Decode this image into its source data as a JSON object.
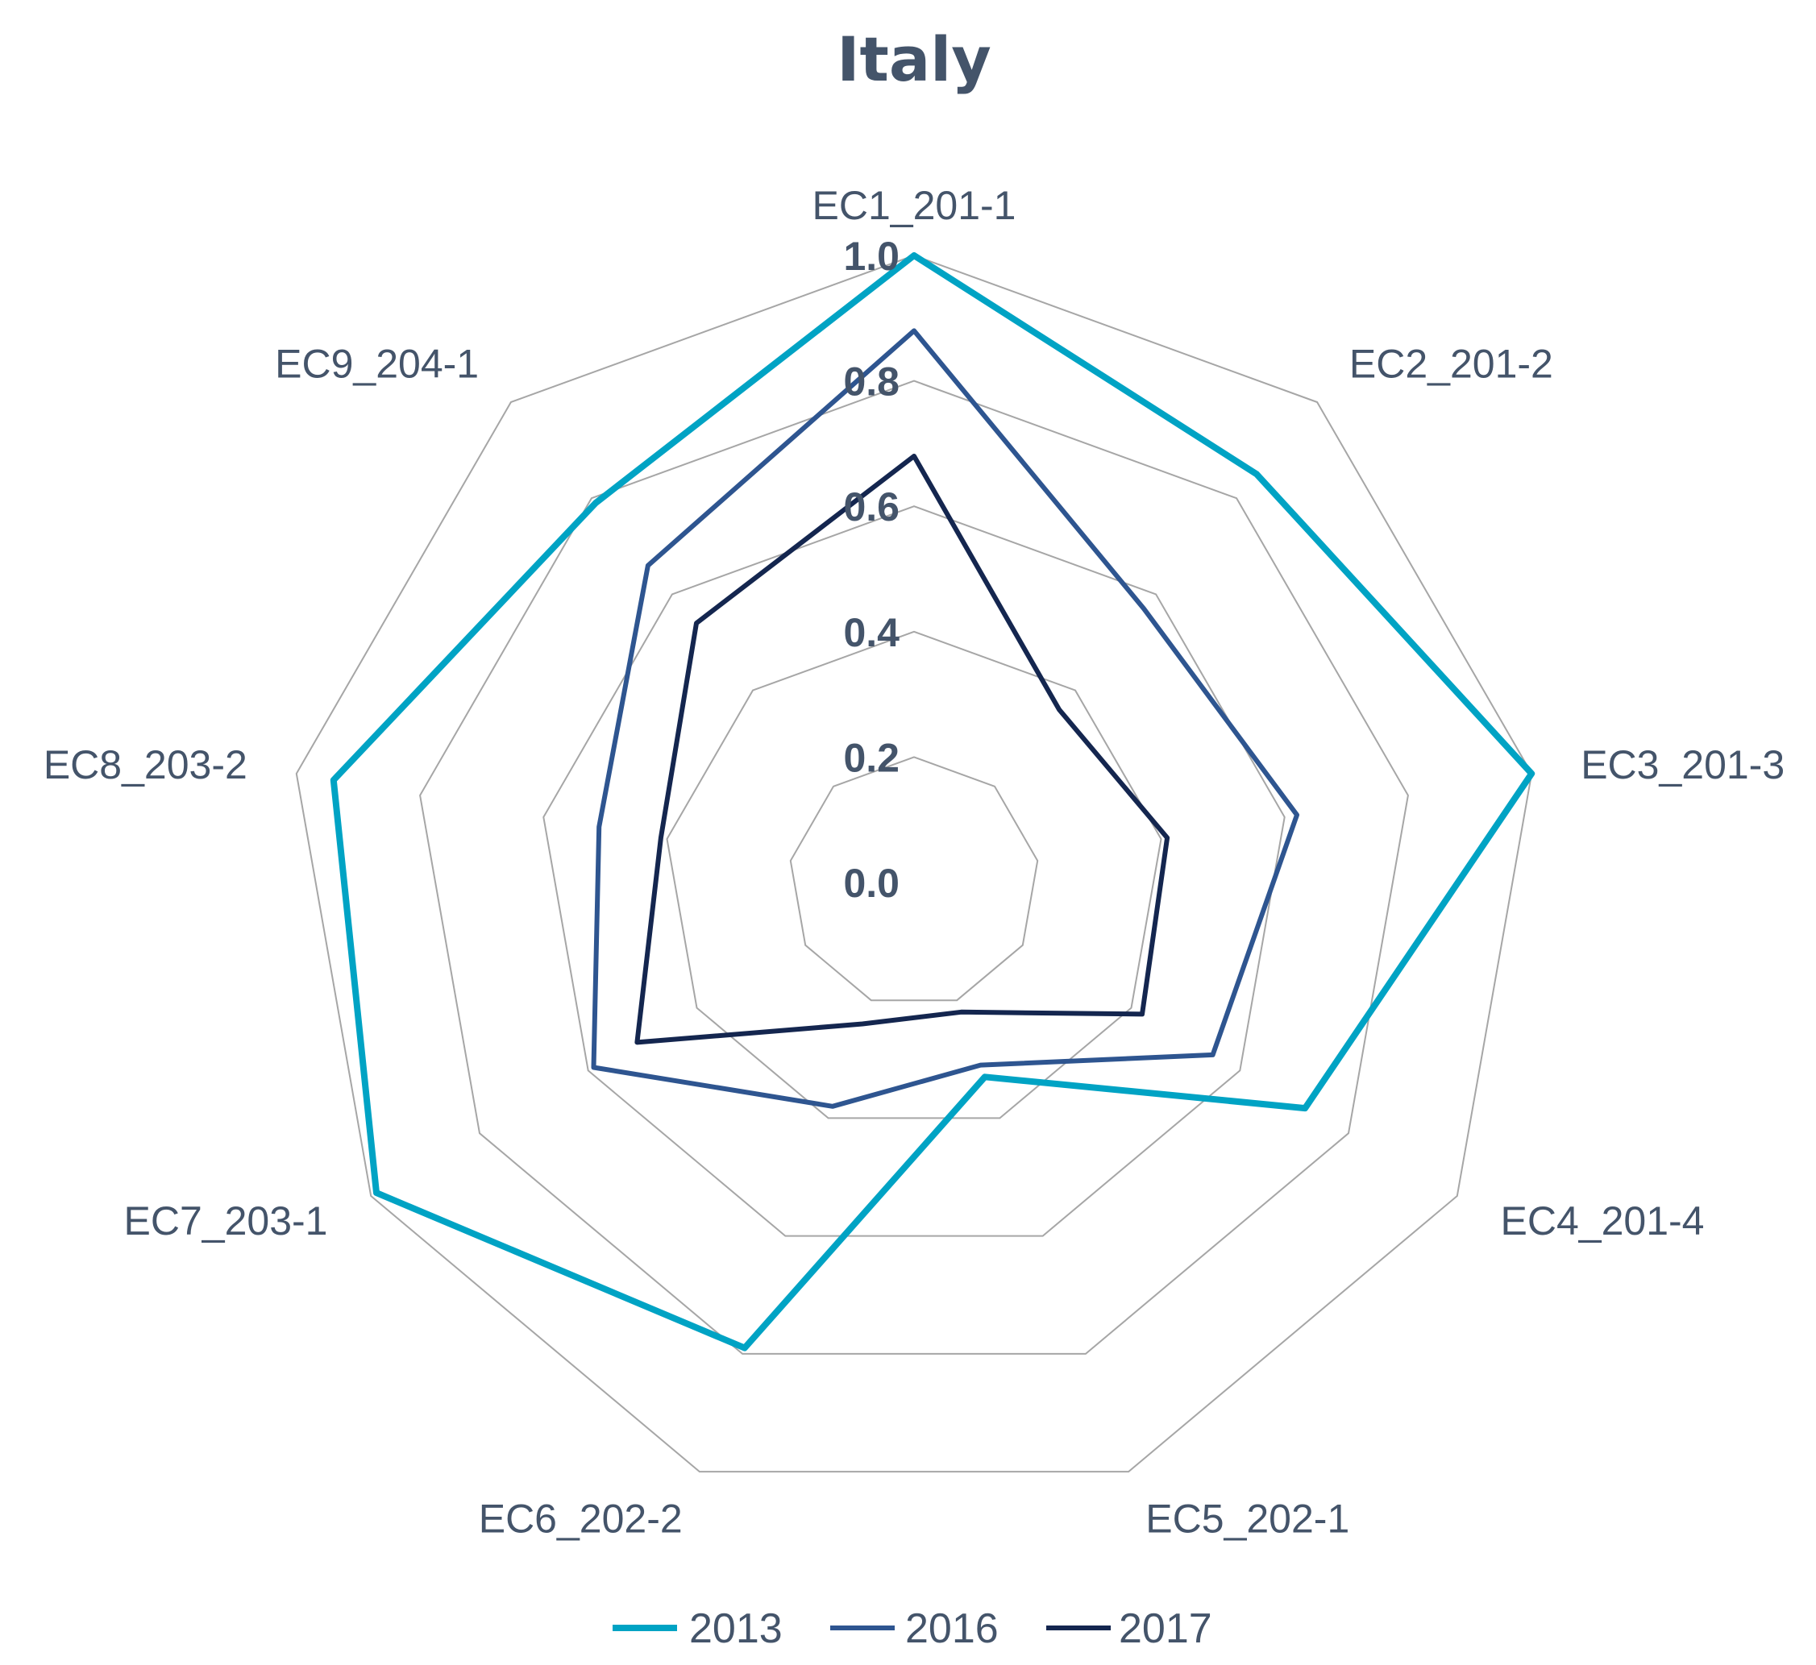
{
  "chart_data": {
    "type": "radar",
    "title": "Italy",
    "axes": [
      "EC1_201-1",
      "EC2_201-2",
      "EC3_201-3",
      "EC4_201-4",
      "EC5_202-1",
      "EC6_202-2",
      "EC7_203-1",
      "EC8_203-2",
      "EC9_204-1"
    ],
    "ticks": [
      "0.0",
      "0.2",
      "0.4",
      "0.6",
      "0.8",
      "1.0"
    ],
    "range": [
      0,
      1
    ],
    "grid": true,
    "legend_position": "bottom",
    "series": [
      {
        "name": "2013",
        "color": "#00a3c4",
        "values": [
          1.0,
          0.85,
          1.0,
          0.72,
          0.33,
          0.79,
          0.99,
          0.94,
          0.79
        ]
      },
      {
        "name": "2016",
        "color": "#2e5590",
        "values": [
          0.88,
          0.57,
          0.62,
          0.55,
          0.31,
          0.38,
          0.59,
          0.51,
          0.66
        ]
      },
      {
        "name": "2017",
        "color": "#14264f",
        "values": [
          0.68,
          0.36,
          0.41,
          0.42,
          0.22,
          0.24,
          0.51,
          0.41,
          0.54
        ]
      }
    ]
  }
}
